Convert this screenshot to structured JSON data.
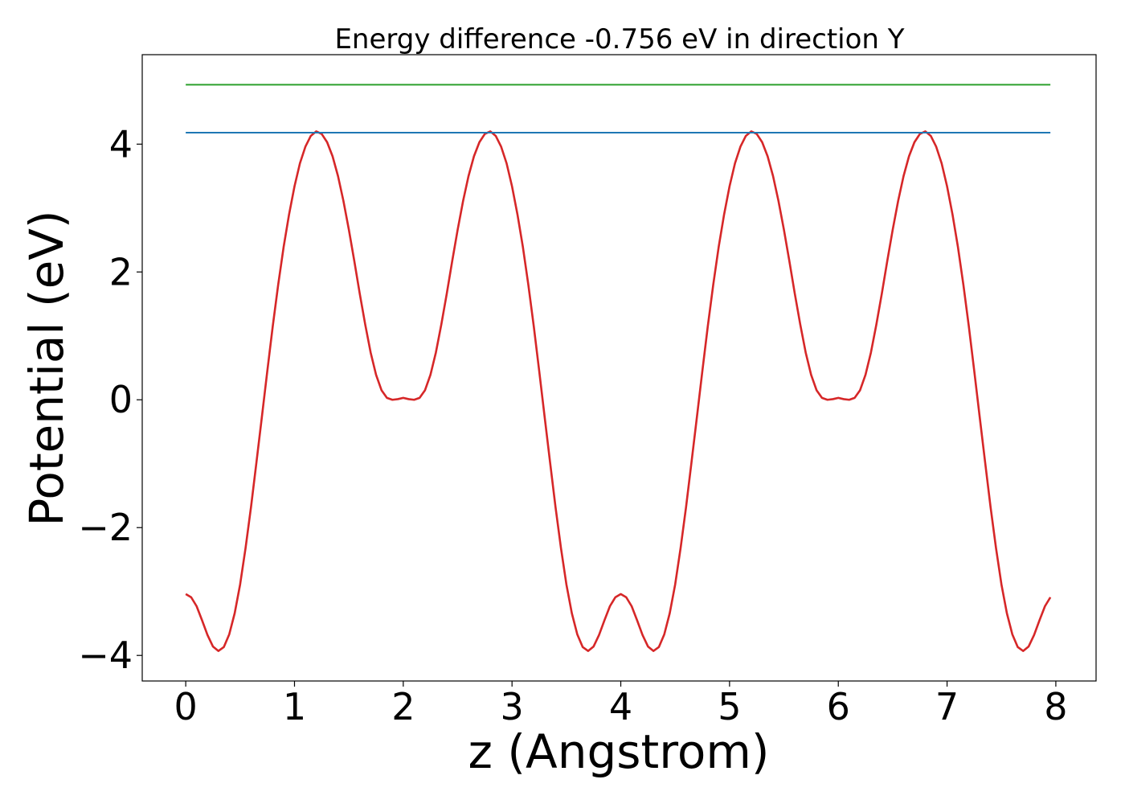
{
  "chart_data": {
    "type": "line",
    "title": "Energy difference -0.756 eV in direction Y",
    "xlabel": "z (Angstrom)",
    "ylabel": "Potential (eV)",
    "xlim": [
      -0.4,
      8.37
    ],
    "ylim": [
      -4.4,
      5.4
    ],
    "xticks": [
      0,
      1,
      2,
      3,
      4,
      5,
      6,
      7,
      8
    ],
    "xtick_labels": [
      "0",
      "1",
      "2",
      "3",
      "4",
      "5",
      "6",
      "7",
      "8"
    ],
    "yticks": [
      4,
      2,
      0,
      -2,
      -4
    ],
    "ytick_labels": [
      "4",
      "2",
      "0",
      "−2",
      "−4"
    ],
    "grid": false,
    "legend": "none",
    "series": [
      {
        "color": "#d62728",
        "x": [
          0.0,
          0.05,
          0.1,
          0.15,
          0.2,
          0.25,
          0.3,
          0.35,
          0.4,
          0.45,
          0.5,
          0.55,
          0.6,
          0.65,
          0.7,
          0.75,
          0.8,
          0.85,
          0.9,
          0.95,
          1.0,
          1.05,
          1.1,
          1.15,
          1.2,
          1.25,
          1.3,
          1.35,
          1.4,
          1.45,
          1.5,
          1.55,
          1.6,
          1.65,
          1.7,
          1.75,
          1.8,
          1.85,
          1.9,
          1.95,
          2.0,
          2.05,
          2.1,
          2.15,
          2.2,
          2.25,
          2.3,
          2.35,
          2.4,
          2.45,
          2.5,
          2.55,
          2.6,
          2.65,
          2.7,
          2.75,
          2.8,
          2.85,
          2.9,
          2.95,
          3.0,
          3.05,
          3.1,
          3.15,
          3.2,
          3.25,
          3.3,
          3.35,
          3.4,
          3.45,
          3.5,
          3.55,
          3.6,
          3.65,
          3.7,
          3.75,
          3.8,
          3.85,
          3.9,
          3.95,
          4.0,
          4.05,
          4.1,
          4.15,
          4.2,
          4.25,
          4.3,
          4.35,
          4.4,
          4.45,
          4.5,
          4.55,
          4.6,
          4.65,
          4.7,
          4.75,
          4.8,
          4.85,
          4.9,
          4.95,
          5.0,
          5.05,
          5.1,
          5.15,
          5.2,
          5.25,
          5.3,
          5.35,
          5.4,
          5.45,
          5.5,
          5.55,
          5.6,
          5.65,
          5.7,
          5.75,
          5.8,
          5.85,
          5.9,
          5.95,
          6.0,
          6.05,
          6.1,
          6.15,
          6.2,
          6.25,
          6.3,
          6.35,
          6.4,
          6.45,
          6.5,
          6.55,
          6.6,
          6.65,
          6.7,
          6.75,
          6.8,
          6.85,
          6.9,
          6.95,
          7.0,
          7.05,
          7.1,
          7.15,
          7.2,
          7.25,
          7.3,
          7.35,
          7.4,
          7.45,
          7.5,
          7.55,
          7.6,
          7.65,
          7.7,
          7.75,
          7.8,
          7.85,
          7.9,
          7.95
        ],
        "y": [
          -3.04,
          -3.09,
          -3.23,
          -3.45,
          -3.68,
          -3.86,
          -3.93,
          -3.87,
          -3.67,
          -3.34,
          -2.89,
          -2.32,
          -1.68,
          -0.98,
          -0.27,
          0.45,
          1.15,
          1.8,
          2.39,
          2.9,
          3.34,
          3.7,
          3.96,
          4.13,
          4.2,
          4.16,
          4.03,
          3.81,
          3.5,
          3.11,
          2.66,
          2.17,
          1.66,
          1.18,
          0.74,
          0.39,
          0.15,
          0.03,
          0.0,
          0.01,
          0.03,
          0.01,
          0.0,
          0.03,
          0.15,
          0.39,
          0.74,
          1.18,
          1.66,
          2.17,
          2.66,
          3.11,
          3.5,
          3.81,
          4.03,
          4.16,
          4.2,
          4.13,
          3.96,
          3.7,
          3.34,
          2.9,
          2.39,
          1.8,
          1.15,
          0.45,
          -0.27,
          -0.98,
          -1.68,
          -2.32,
          -2.89,
          -3.34,
          -3.67,
          -3.87,
          -3.93,
          -3.86,
          -3.68,
          -3.45,
          -3.23,
          -3.09,
          -3.04,
          -3.09,
          -3.23,
          -3.45,
          -3.68,
          -3.86,
          -3.93,
          -3.87,
          -3.67,
          -3.34,
          -2.89,
          -2.32,
          -1.68,
          -0.98,
          -0.27,
          0.45,
          1.15,
          1.8,
          2.39,
          2.9,
          3.34,
          3.7,
          3.96,
          4.13,
          4.2,
          4.16,
          4.03,
          3.81,
          3.5,
          3.11,
          2.66,
          2.17,
          1.66,
          1.18,
          0.74,
          0.39,
          0.15,
          0.03,
          0.0,
          0.01,
          0.03,
          0.01,
          0.0,
          0.03,
          0.15,
          0.39,
          0.74,
          1.18,
          1.66,
          2.17,
          2.66,
          3.11,
          3.5,
          3.81,
          4.03,
          4.16,
          4.2,
          4.13,
          3.96,
          3.7,
          3.34,
          2.9,
          2.39,
          1.8,
          1.15,
          0.45,
          -0.27,
          -0.98,
          -1.68,
          -2.32,
          -2.89,
          -3.34,
          -3.67,
          -3.87,
          -3.93,
          -3.86,
          -3.68,
          -3.45,
          -3.23,
          -3.09
        ]
      },
      {
        "color": "#1f77b4",
        "x": [
          0.0,
          7.95
        ],
        "y": [
          4.18,
          4.18
        ]
      },
      {
        "color": "#2ca02c",
        "x": [
          0.0,
          7.95
        ],
        "y": [
          4.93,
          4.93
        ]
      }
    ]
  }
}
